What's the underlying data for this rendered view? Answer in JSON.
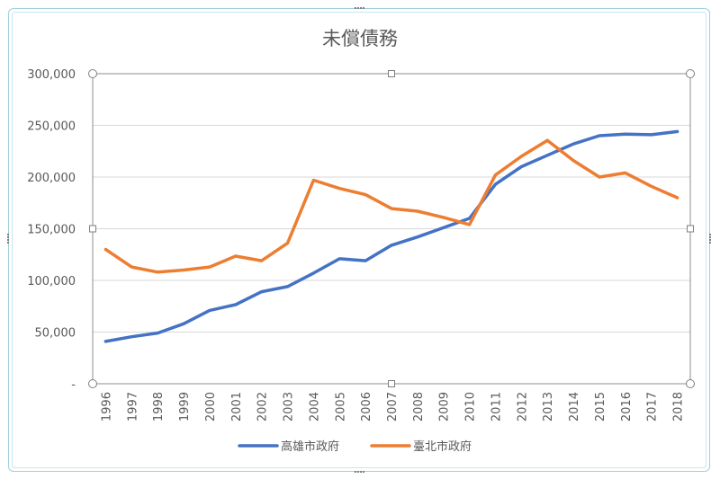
{
  "chart_data": {
    "type": "line",
    "title": "未償債務",
    "x": [
      "1996",
      "1997",
      "1998",
      "1999",
      "2000",
      "2001",
      "2002",
      "2003",
      "2004",
      "2005",
      "2006",
      "2007",
      "2008",
      "2009",
      "2010",
      "2011",
      "2012",
      "2013",
      "2014",
      "2015",
      "2016",
      "2017",
      "2018"
    ],
    "y_ticks": [
      "-",
      "50,000",
      "100,000",
      "150,000",
      "200,000",
      "250,000",
      "300,000"
    ],
    "ylim": [
      0,
      300000
    ],
    "grid": true,
    "legend_position": "bottom",
    "series": [
      {
        "name": "高雄市政府",
        "color": "#4472c4",
        "values": [
          41000,
          45500,
          49000,
          58000,
          71000,
          76500,
          89000,
          94000,
          107000,
          121000,
          119000,
          134000,
          142000,
          151000,
          160000,
          193000,
          210000,
          221000,
          232000,
          240000,
          241500,
          241000,
          244000
        ]
      },
      {
        "name": "臺北市政府",
        "color": "#ed7d31",
        "values": [
          130000,
          113000,
          108000,
          110000,
          113000,
          123500,
          119000,
          136000,
          197000,
          189000,
          183000,
          169500,
          167000,
          161000,
          154000,
          202000,
          220000,
          235500,
          216000,
          200000,
          204000,
          191000,
          180000
        ]
      }
    ]
  }
}
